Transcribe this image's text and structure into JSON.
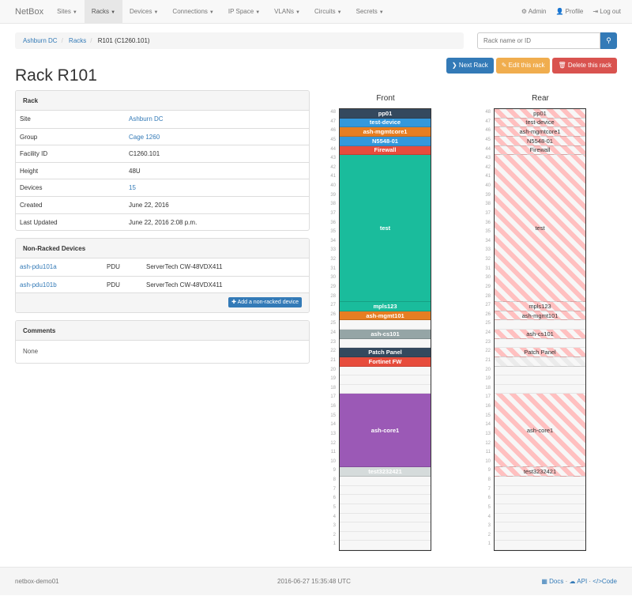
{
  "nav": {
    "brand": "NetBox",
    "items": [
      "Sites",
      "Racks",
      "Devices",
      "Connections",
      "IP Space",
      "VLANs",
      "Circuits",
      "Secrets"
    ],
    "active": "Racks",
    "right": [
      {
        "icon": "gear-icon",
        "label": "Admin"
      },
      {
        "icon": "user-icon",
        "label": "Profile"
      },
      {
        "icon": "logout-icon",
        "label": "Log out"
      }
    ]
  },
  "breadcrumb": [
    "Ashburn DC",
    "Racks",
    "R101 (C1260.101)"
  ],
  "search": {
    "placeholder": "Rack name or ID"
  },
  "buttons": {
    "next": "Next Rack",
    "edit": "Edit this rack",
    "delete": "Delete this rack"
  },
  "title": "Rack R101",
  "rack_panel": {
    "heading": "Rack",
    "rows": [
      {
        "key": "Site",
        "value": "Ashburn DC",
        "link": true
      },
      {
        "key": "Group",
        "value": "Cage 1260",
        "link": true
      },
      {
        "key": "Facility ID",
        "value": "C1260.101",
        "link": false
      },
      {
        "key": "Height",
        "value": "48U",
        "link": false
      },
      {
        "key": "Devices",
        "value": "15",
        "link": true
      },
      {
        "key": "Created",
        "value": "June 22, 2016",
        "link": false
      },
      {
        "key": "Last Updated",
        "value": "June 22, 2016 2:08 p.m.",
        "link": false
      }
    ]
  },
  "nonracked": {
    "heading": "Non-Racked Devices",
    "rows": [
      {
        "name": "ash-pdu101a",
        "role": "PDU",
        "type": "ServerTech CW-48VDX411"
      },
      {
        "name": "ash-pdu101b",
        "role": "PDU",
        "type": "ServerTech CW-48VDX411"
      }
    ],
    "add_label": "Add a non-racked device"
  },
  "comments": {
    "heading": "Comments",
    "body": "None"
  },
  "rack": {
    "front_label": "Front",
    "rear_label": "Rear",
    "units": 48,
    "devices": [
      {
        "name": "pp01",
        "position": 48,
        "height": 1,
        "color": "#34495e"
      },
      {
        "name": "test-device",
        "position": 47,
        "height": 1,
        "color": "#3498db"
      },
      {
        "name": "ash-mgmtcore1",
        "position": 46,
        "height": 1,
        "color": "#e67e22"
      },
      {
        "name": "N5548-01",
        "position": 45,
        "height": 1,
        "color": "#3498db"
      },
      {
        "name": "Firewall",
        "position": 44,
        "height": 1,
        "color": "#e74c3c"
      },
      {
        "name": "test",
        "position": 28,
        "height": 16,
        "color": "#1abc9c"
      },
      {
        "name": "mpls123",
        "position": 27,
        "height": 1,
        "color": "#1abc9c"
      },
      {
        "name": "ash-mgmt101",
        "position": 26,
        "height": 1,
        "color": "#e67e22"
      },
      {
        "name": "ash-cs101",
        "position": 24,
        "height": 1,
        "color": "#95a5a6"
      },
      {
        "name": "Patch Panel",
        "position": 22,
        "height": 1,
        "color": "#34495e"
      },
      {
        "name": "Fortinet FW",
        "position": 21,
        "height": 1,
        "color": "#e74c3c",
        "front_only": true
      },
      {
        "name": "ash-core1",
        "position": 10,
        "height": 8,
        "color": "#9b59b6"
      },
      {
        "name": "test3232421",
        "position": 9,
        "height": 1,
        "color": "#d5dbdb"
      }
    ],
    "rear_reserved": [
      21
    ]
  },
  "footer": {
    "host": "netbox-demo01",
    "time": "2016-06-27 15:35:48 UTC",
    "links": [
      "Docs",
      "API",
      "Code"
    ]
  }
}
